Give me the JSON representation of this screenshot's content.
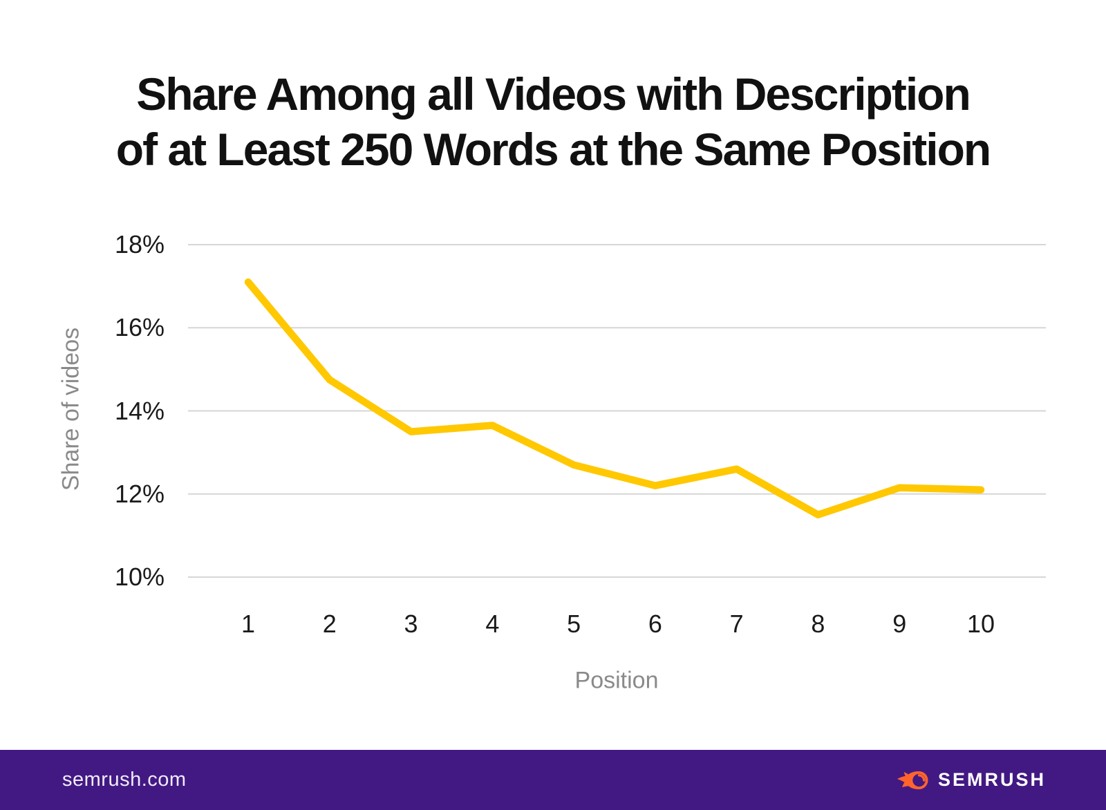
{
  "title": {
    "line1": "Share Among all Videos with Description",
    "line2": "of at Least 250 Words at the Same Position"
  },
  "chart_data": {
    "type": "line",
    "title": "Share Among all Videos with Description of at Least 250 Words at the Same Position",
    "x": [
      1,
      2,
      3,
      4,
      5,
      6,
      7,
      8,
      9,
      10
    ],
    "series": [
      {
        "name": "Share of videos",
        "values": [
          17.1,
          14.75,
          13.5,
          13.65,
          12.7,
          12.2,
          12.6,
          11.5,
          12.15,
          12.1
        ]
      }
    ],
    "xlabel": "Position",
    "ylabel": "Share of videos",
    "ylim": [
      10,
      18
    ],
    "yticks": [
      18,
      16,
      14,
      12,
      10
    ],
    "ytick_labels": [
      "18%",
      "16%",
      "14%",
      "12%",
      "10%"
    ],
    "grid": true,
    "legend": false,
    "line_color": "#FFC801",
    "grid_color": "#D6D6D6"
  },
  "footer": {
    "website": "semrush.com",
    "brand": "SEMRUSH",
    "background_color": "#421983",
    "flame_color": "#FF642D"
  }
}
